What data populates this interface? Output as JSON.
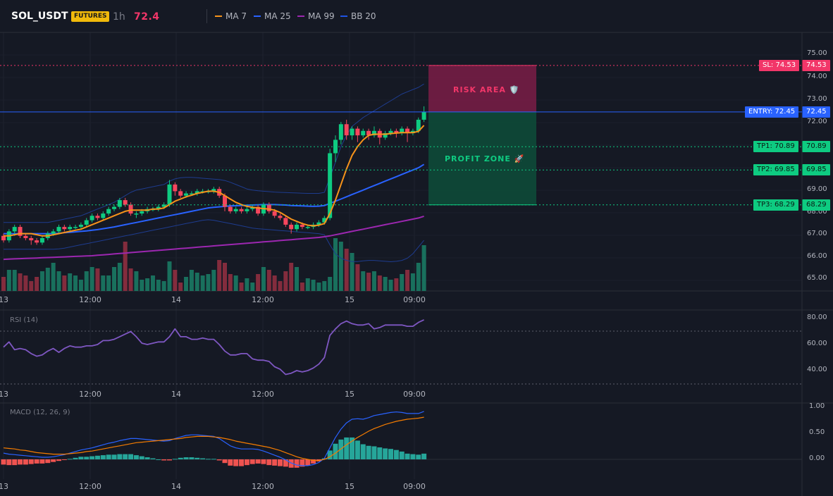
{
  "header": {
    "symbol": "SOL_USDT",
    "badge": "FUTURES",
    "timeframe": "1h",
    "price": "72.4",
    "legend": [
      {
        "label": "MA 7",
        "color": "#f7931a"
      },
      {
        "label": "MA 25",
        "color": "#2962ff"
      },
      {
        "label": "MA 99",
        "color": "#9c27b0"
      },
      {
        "label": "BB 20",
        "color": "#1e53e5"
      }
    ]
  },
  "colors": {
    "up": "#0ecb81",
    "down": "#f6465d",
    "background": "#151924",
    "risk": "#8b1e4b",
    "profit": "#0e5a43",
    "entry": "#2962ff",
    "sl": "#f23669",
    "tp": "#0ecb81"
  },
  "price_axis": [
    "75.00",
    "74.00",
    "73.00",
    "72.00",
    "69.00",
    "68.00",
    "67.00",
    "66.00",
    "65.00"
  ],
  "time_axis": [
    "13",
    "12:00",
    "14",
    "12:00",
    "15",
    "09:00"
  ],
  "levels": {
    "sl": {
      "label": "SL: 74.53",
      "value": "74.53",
      "price": 74.53
    },
    "entry": {
      "label": "ENTRY: 72.45",
      "value": "72.45",
      "price": 72.45
    },
    "tp1": {
      "label": "TP1: 70.89",
      "value": "70.89",
      "price": 70.89
    },
    "tp2": {
      "label": "TP2: 69.85",
      "value": "69.85",
      "price": 69.85
    },
    "tp3": {
      "label": "TP3: 68.29",
      "value": "68.29",
      "price": 68.29
    }
  },
  "zones": {
    "risk": "RISK AREA 🛡️",
    "profit": "PROFIT ZONE 🚀"
  },
  "rsi": {
    "title": "RSI (14)",
    "axis": [
      "80.00",
      "60.00",
      "40.00"
    ],
    "values": [
      58,
      62,
      56,
      57,
      56,
      53,
      51,
      52,
      55,
      57,
      54,
      57,
      59,
      58,
      58,
      59,
      59,
      60,
      63,
      63,
      64,
      66,
      68,
      70,
      66,
      61,
      60,
      61,
      62,
      62,
      66,
      72,
      66,
      66,
      64,
      64,
      65,
      64,
      64,
      60,
      55,
      52,
      52,
      53,
      53,
      49,
      48,
      48,
      47,
      43,
      41,
      37,
      38,
      40,
      39,
      40,
      42,
      45,
      50,
      67,
      72,
      76,
      78,
      76,
      75,
      75,
      76,
      72,
      73,
      75,
      75,
      75,
      75,
      74,
      74,
      77,
      79
    ]
  },
  "macd": {
    "title": "MACD (12, 26, 9)",
    "axis": [
      "1.00",
      "0.50",
      "0.00"
    ],
    "macd": [
      0.12,
      0.1,
      0.09,
      0.08,
      0.07,
      0.06,
      0.05,
      0.04,
      0.04,
      0.05,
      0.07,
      0.09,
      0.12,
      0.15,
      0.18,
      0.2,
      0.22,
      0.25,
      0.28,
      0.31,
      0.33,
      0.36,
      0.38,
      0.4,
      0.4,
      0.39,
      0.38,
      0.37,
      0.36,
      0.35,
      0.36,
      0.4,
      0.43,
      0.46,
      0.47,
      0.47,
      0.46,
      0.45,
      0.44,
      0.4,
      0.33,
      0.26,
      0.22,
      0.2,
      0.2,
      0.2,
      0.19,
      0.16,
      0.12,
      0.08,
      0.04,
      -0.01,
      -0.07,
      -0.11,
      -0.12,
      -0.12,
      -0.1,
      -0.06,
      0.02,
      0.22,
      0.42,
      0.58,
      0.7,
      0.77,
      0.78,
      0.77,
      0.8,
      0.84,
      0.86,
      0.88,
      0.9,
      0.91,
      0.9,
      0.88,
      0.88,
      0.88,
      0.92
    ],
    "signal": [
      0.22,
      0.21,
      0.2,
      0.18,
      0.17,
      0.15,
      0.13,
      0.12,
      0.11,
      0.1,
      0.1,
      0.1,
      0.11,
      0.12,
      0.13,
      0.15,
      0.16,
      0.18,
      0.2,
      0.22,
      0.24,
      0.26,
      0.28,
      0.3,
      0.32,
      0.33,
      0.34,
      0.35,
      0.36,
      0.37,
      0.38,
      0.39,
      0.4,
      0.42,
      0.43,
      0.44,
      0.44,
      0.44,
      0.43,
      0.42,
      0.4,
      0.38,
      0.35,
      0.33,
      0.31,
      0.29,
      0.27,
      0.25,
      0.23,
      0.2,
      0.17,
      0.13,
      0.09,
      0.05,
      0.02,
      0.0,
      -0.02,
      -0.02,
      0.0,
      0.05,
      0.12,
      0.2,
      0.28,
      0.35,
      0.42,
      0.48,
      0.54,
      0.59,
      0.63,
      0.67,
      0.7,
      0.73,
      0.75,
      0.77,
      0.78,
      0.79,
      0.81
    ]
  },
  "candles": [
    [
      66.9,
      66.7,
      67.0,
      66.6
    ],
    [
      66.7,
      67.1,
      67.2,
      66.6
    ],
    [
      67.1,
      67.3,
      67.4,
      66.9
    ],
    [
      67.3,
      66.9,
      67.4,
      66.8
    ],
    [
      66.9,
      66.8,
      67.0,
      66.7
    ],
    [
      66.8,
      66.7,
      66.9,
      66.5
    ],
    [
      66.7,
      66.6,
      66.8,
      66.5
    ],
    [
      66.6,
      66.8,
      66.9,
      66.5
    ],
    [
      66.8,
      67.0,
      67.1,
      66.7
    ],
    [
      67.0,
      67.1,
      67.2,
      66.9
    ],
    [
      67.1,
      67.3,
      67.4,
      67.0
    ],
    [
      67.3,
      67.2,
      67.4,
      67.1
    ],
    [
      67.2,
      67.3,
      67.4,
      67.1
    ],
    [
      67.3,
      67.3,
      67.4,
      67.2
    ],
    [
      67.3,
      67.4,
      67.5,
      67.2
    ],
    [
      67.4,
      67.6,
      67.7,
      67.3
    ],
    [
      67.6,
      67.8,
      67.9,
      67.5
    ],
    [
      67.8,
      67.7,
      67.9,
      67.6
    ],
    [
      67.7,
      67.9,
      68.0,
      67.6
    ],
    [
      67.9,
      68.1,
      68.2,
      67.8
    ],
    [
      68.1,
      68.2,
      68.3,
      68.0
    ],
    [
      68.2,
      68.5,
      68.6,
      68.1
    ],
    [
      68.5,
      68.3,
      68.6,
      68.2
    ],
    [
      68.3,
      67.9,
      68.4,
      67.8
    ],
    [
      67.9,
      67.9,
      68.0,
      67.7
    ],
    [
      67.9,
      68.0,
      68.1,
      67.8
    ],
    [
      68.0,
      68.1,
      68.2,
      67.9
    ],
    [
      68.1,
      68.1,
      68.2,
      68.0
    ],
    [
      68.1,
      68.2,
      68.3,
      68.0
    ],
    [
      68.2,
      68.3,
      68.4,
      68.1
    ],
    [
      68.3,
      69.2,
      69.4,
      68.2
    ],
    [
      69.2,
      68.9,
      69.3,
      68.7
    ],
    [
      68.9,
      68.7,
      69.0,
      68.6
    ],
    [
      68.7,
      68.8,
      68.9,
      68.6
    ],
    [
      68.8,
      68.8,
      68.9,
      68.7
    ],
    [
      68.8,
      68.9,
      69.0,
      68.7
    ],
    [
      68.9,
      68.9,
      69.0,
      68.8
    ],
    [
      68.9,
      68.9,
      69.0,
      68.8
    ],
    [
      68.9,
      69.0,
      69.1,
      68.8
    ],
    [
      69.0,
      68.7,
      69.1,
      68.6
    ],
    [
      68.7,
      68.2,
      68.8,
      68.0
    ],
    [
      68.2,
      68.0,
      68.3,
      67.9
    ],
    [
      68.0,
      68.1,
      68.2,
      67.9
    ],
    [
      68.1,
      68.0,
      68.2,
      67.9
    ],
    [
      68.0,
      68.1,
      68.2,
      67.9
    ],
    [
      68.1,
      68.2,
      68.3,
      68.0
    ],
    [
      68.2,
      67.9,
      68.3,
      67.8
    ],
    [
      67.9,
      68.3,
      68.4,
      67.8
    ],
    [
      68.3,
      68.0,
      68.4,
      67.9
    ],
    [
      68.0,
      67.8,
      68.1,
      67.7
    ],
    [
      67.8,
      67.7,
      67.9,
      67.6
    ],
    [
      67.7,
      67.4,
      67.8,
      67.3
    ],
    [
      67.4,
      67.2,
      67.5,
      67.0
    ],
    [
      67.2,
      67.4,
      67.5,
      67.1
    ],
    [
      67.4,
      67.3,
      67.5,
      67.2
    ],
    [
      67.3,
      67.3,
      67.4,
      67.2
    ],
    [
      67.3,
      67.4,
      67.5,
      67.2
    ],
    [
      67.4,
      67.5,
      67.6,
      67.3
    ],
    [
      67.5,
      67.7,
      67.8,
      67.4
    ],
    [
      67.7,
      70.6,
      70.8,
      67.6
    ],
    [
      70.6,
      71.2,
      71.4,
      70.2
    ],
    [
      71.2,
      71.9,
      72.0,
      71.0
    ],
    [
      71.9,
      71.4,
      72.1,
      71.2
    ],
    [
      71.4,
      71.7,
      71.8,
      71.2
    ],
    [
      71.7,
      71.4,
      71.8,
      71.1
    ],
    [
      71.4,
      71.6,
      71.7,
      71.3
    ],
    [
      71.6,
      71.4,
      71.7,
      71.2
    ],
    [
      71.4,
      71.6,
      71.8,
      71.3
    ],
    [
      71.6,
      71.3,
      71.7,
      71.0
    ],
    [
      71.3,
      71.5,
      71.6,
      71.2
    ],
    [
      71.5,
      71.6,
      71.7,
      71.4
    ],
    [
      71.6,
      71.5,
      71.7,
      71.3
    ],
    [
      71.5,
      71.7,
      71.8,
      71.4
    ],
    [
      71.7,
      71.5,
      71.8,
      71.1
    ],
    [
      71.5,
      71.6,
      71.7,
      71.4
    ],
    [
      71.6,
      72.1,
      72.2,
      71.5
    ],
    [
      72.1,
      72.45,
      72.7,
      72.0
    ]
  ],
  "volume": [
    20,
    30,
    30,
    25,
    22,
    14,
    20,
    28,
    33,
    40,
    28,
    22,
    25,
    22,
    16,
    28,
    34,
    32,
    22,
    22,
    34,
    40,
    70,
    32,
    28,
    16,
    18,
    22,
    16,
    14,
    42,
    30,
    12,
    20,
    30,
    26,
    22,
    24,
    30,
    44,
    40,
    24,
    22,
    12,
    18,
    12,
    24,
    34,
    30,
    22,
    14,
    28,
    40,
    34,
    12,
    18,
    16,
    12,
    14,
    20,
    75,
    70,
    60,
    54,
    38,
    28,
    26,
    28,
    22,
    20,
    16,
    18,
    24,
    30,
    25,
    40,
    65
  ],
  "ma7": [
    66.9,
    66.9,
    66.95,
    67.0,
    67.0,
    67.0,
    66.95,
    66.9,
    66.9,
    66.95,
    67.0,
    67.05,
    67.1,
    67.15,
    67.2,
    67.3,
    67.4,
    67.5,
    67.6,
    67.7,
    67.8,
    67.9,
    68.0,
    68.05,
    68.05,
    68.05,
    68.05,
    68.1,
    68.1,
    68.15,
    68.3,
    68.45,
    68.55,
    68.65,
    68.72,
    68.8,
    68.85,
    68.9,
    68.9,
    68.85,
    68.7,
    68.55,
    68.4,
    68.3,
    68.22,
    68.18,
    68.15,
    68.12,
    68.1,
    68.05,
    67.95,
    67.8,
    67.65,
    67.55,
    67.45,
    67.38,
    67.35,
    67.38,
    67.45,
    67.9,
    68.5,
    69.2,
    69.9,
    70.5,
    70.9,
    71.2,
    71.4,
    71.45,
    71.45,
    71.45,
    71.48,
    71.5,
    71.52,
    71.52,
    71.52,
    71.58,
    71.85
  ],
  "ma25": [
    67.0,
    67.0,
    67.0,
    67.0,
    67.0,
    67.0,
    67.0,
    67.0,
    67.0,
    67.0,
    67.02,
    67.04,
    67.06,
    67.08,
    67.1,
    67.12,
    67.15,
    67.18,
    67.22,
    67.26,
    67.3,
    67.35,
    67.4,
    67.45,
    67.5,
    67.55,
    67.6,
    67.65,
    67.7,
    67.75,
    67.8,
    67.85,
    67.9,
    67.95,
    68.0,
    68.05,
    68.1,
    68.15,
    68.18,
    68.2,
    68.22,
    68.24,
    68.25,
    68.26,
    68.27,
    68.28,
    68.29,
    68.3,
    68.3,
    68.3,
    68.29,
    68.28,
    68.26,
    68.25,
    68.24,
    68.23,
    68.22,
    68.23,
    68.26,
    68.35,
    68.45,
    68.55,
    68.65,
    68.75,
    68.85,
    68.95,
    69.05,
    69.15,
    69.25,
    69.35,
    69.45,
    69.55,
    69.65,
    69.75,
    69.85,
    69.95,
    70.1
  ],
  "ma99": [
    65.85,
    65.86,
    65.87,
    65.88,
    65.89,
    65.9,
    65.91,
    65.92,
    65.93,
    65.94,
    65.95,
    65.96,
    65.97,
    65.98,
    65.99,
    66.0,
    66.01,
    66.03,
    66.05,
    66.07,
    66.09,
    66.11,
    66.13,
    66.15,
    66.17,
    66.19,
    66.21,
    66.23,
    66.25,
    66.27,
    66.29,
    66.31,
    66.33,
    66.35,
    66.37,
    66.39,
    66.41,
    66.43,
    66.45,
    66.47,
    66.49,
    66.51,
    66.53,
    66.55,
    66.57,
    66.59,
    66.61,
    66.63,
    66.65,
    66.67,
    66.69,
    66.71,
    66.73,
    66.75,
    66.77,
    66.79,
    66.81,
    66.83,
    66.86,
    66.9,
    66.95,
    67.0,
    67.05,
    67.1,
    67.15,
    67.2,
    67.25,
    67.3,
    67.35,
    67.4,
    67.45,
    67.5,
    67.55,
    67.6,
    67.65,
    67.7,
    67.78
  ],
  "bb_upper": [
    67.5,
    67.5,
    67.5,
    67.5,
    67.5,
    67.5,
    67.5,
    67.5,
    67.5,
    67.55,
    67.6,
    67.65,
    67.7,
    67.75,
    67.8,
    67.9,
    68.0,
    68.1,
    68.2,
    68.3,
    68.4,
    68.55,
    68.7,
    68.85,
    68.95,
    69.0,
    69.05,
    69.1,
    69.15,
    69.2,
    69.35,
    69.45,
    69.5,
    69.52,
    69.52,
    69.5,
    69.48,
    69.46,
    69.44,
    69.42,
    69.38,
    69.3,
    69.2,
    69.1,
    69.0,
    68.95,
    68.92,
    68.9,
    68.88,
    68.86,
    68.85,
    68.84,
    68.83,
    68.82,
    68.81,
    68.8,
    68.8,
    68.8,
    68.85,
    69.5,
    70.2,
    70.9,
    71.4,
    71.8,
    72.0,
    72.2,
    72.35,
    72.5,
    72.65,
    72.8,
    72.95,
    73.1,
    73.25,
    73.35,
    73.45,
    73.55,
    73.7
  ],
  "bb_lower": [
    66.3,
    66.3,
    66.3,
    66.3,
    66.3,
    66.3,
    66.3,
    66.3,
    66.3,
    66.3,
    66.32,
    66.35,
    66.4,
    66.45,
    66.5,
    66.55,
    66.6,
    66.65,
    66.7,
    66.75,
    66.8,
    66.85,
    66.9,
    66.95,
    67.0,
    67.05,
    67.1,
    67.15,
    67.2,
    67.25,
    67.3,
    67.35,
    67.4,
    67.45,
    67.5,
    67.55,
    67.6,
    67.62,
    67.6,
    67.55,
    67.5,
    67.45,
    67.4,
    67.35,
    67.3,
    67.25,
    67.22,
    67.2,
    67.18,
    67.16,
    67.14,
    67.12,
    67.1,
    67.08,
    67.06,
    67.04,
    67.02,
    67.0,
    66.95,
    66.5,
    66.1,
    65.9,
    65.8,
    65.75,
    65.75,
    65.78,
    65.8,
    65.8,
    65.78,
    65.76,
    65.74,
    65.76,
    65.8,
    65.9,
    66.1,
    66.4,
    66.7
  ]
}
